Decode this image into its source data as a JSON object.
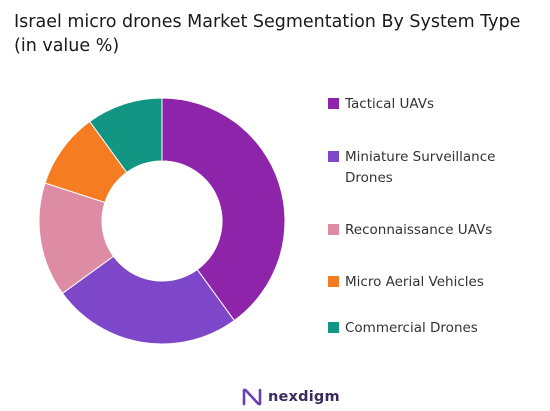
{
  "chart_data": {
    "type": "pie",
    "title": "Israel micro drones Market Segmentation By System Type (in value %)",
    "categories": [
      "Tactical UAVs",
      "Miniature Surveillance Drones",
      "Reconnaissance UAVs",
      "Micro Aerial Vehicles",
      "Commercial Drones"
    ],
    "values": [
      40,
      25,
      15,
      10,
      10
    ],
    "unit": "%",
    "colors": [
      "#8e24aa",
      "#7e47c9",
      "#de8ba4",
      "#f57c20",
      "#129582"
    ],
    "legend_position": "right",
    "donut": true
  },
  "brand": {
    "name": "nexdigm",
    "color": "#3b2a5a",
    "icon": "nexdigm-logo-icon"
  }
}
